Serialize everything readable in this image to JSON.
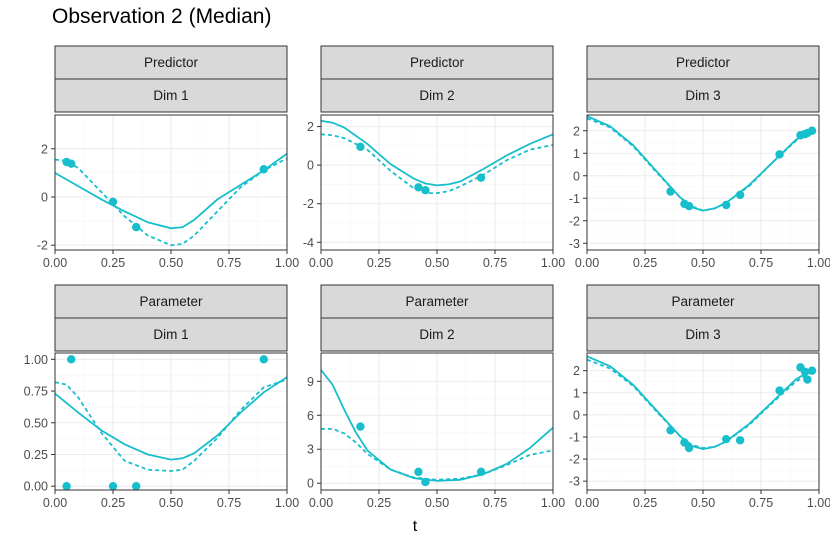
{
  "title": "Observation 2 (Median)",
  "xlabel": "t",
  "colors": {
    "series": "#17becb",
    "strip": "#d9d9d9",
    "grid": "#ebebeb",
    "border": "#333333"
  },
  "chart_data": [
    {
      "type": "line",
      "strip_top": "Predictor",
      "strip_bottom": "Dim 1",
      "xlim": [
        0,
        1
      ],
      "ylim": [
        -2.2,
        3.4
      ],
      "xticks": [
        0,
        0.25,
        0.5,
        0.75,
        1
      ],
      "xtick_labels": [
        "0.00",
        "0.25",
        "0.50",
        "0.75",
        "1.00"
      ],
      "yticks": [
        -2,
        0,
        2
      ],
      "ytick_labels": [
        "-2",
        "0",
        "2"
      ],
      "series": [
        {
          "name": "solid",
          "x": [
            0,
            0.1,
            0.2,
            0.3,
            0.4,
            0.5,
            0.55,
            0.6,
            0.7,
            0.8,
            0.9,
            1.0
          ],
          "y": [
            1.0,
            0.45,
            -0.1,
            -0.6,
            -1.05,
            -1.3,
            -1.25,
            -0.95,
            -0.1,
            0.5,
            1.1,
            1.8
          ]
        },
        {
          "name": "dashed",
          "x": [
            0,
            0.05,
            0.1,
            0.2,
            0.3,
            0.4,
            0.5,
            0.55,
            0.6,
            0.7,
            0.8,
            0.9,
            1.0
          ],
          "y": [
            1.55,
            1.5,
            1.2,
            0.2,
            -0.8,
            -1.6,
            -2.0,
            -1.95,
            -1.6,
            -0.6,
            0.4,
            1.1,
            1.6
          ]
        }
      ],
      "points": {
        "x": [
          0.05,
          0.07,
          0.25,
          0.35,
          0.9
        ],
        "y": [
          1.45,
          1.38,
          -0.2,
          -1.25,
          1.15
        ]
      }
    },
    {
      "type": "line",
      "strip_top": "Predictor",
      "strip_bottom": "Dim 2",
      "xlim": [
        0,
        1
      ],
      "ylim": [
        -4.4,
        2.6
      ],
      "xticks": [
        0,
        0.25,
        0.5,
        0.75,
        1
      ],
      "xtick_labels": [
        "0.00",
        "0.25",
        "0.50",
        "0.75",
        "1.00"
      ],
      "yticks": [
        -4,
        -2,
        0,
        2
      ],
      "ytick_labels": [
        "-4",
        "-2",
        "0",
        "2"
      ],
      "series": [
        {
          "name": "solid",
          "x": [
            0,
            0.05,
            0.1,
            0.2,
            0.3,
            0.4,
            0.45,
            0.5,
            0.55,
            0.6,
            0.7,
            0.8,
            0.9,
            1.0
          ],
          "y": [
            2.3,
            2.2,
            1.95,
            1.1,
            0.05,
            -0.7,
            -0.95,
            -1.05,
            -1.0,
            -0.85,
            -0.2,
            0.5,
            1.1,
            1.6
          ]
        },
        {
          "name": "dashed",
          "x": [
            0,
            0.05,
            0.1,
            0.2,
            0.3,
            0.4,
            0.45,
            0.5,
            0.55,
            0.6,
            0.7,
            0.8,
            0.9,
            1.0
          ],
          "y": [
            1.6,
            1.55,
            1.4,
            0.8,
            -0.3,
            -1.2,
            -1.45,
            -1.45,
            -1.35,
            -1.1,
            -0.5,
            0.25,
            0.8,
            1.05
          ]
        }
      ],
      "points": {
        "x": [
          0.17,
          0.42,
          0.45,
          0.69
        ],
        "y": [
          0.95,
          -1.15,
          -1.3,
          -0.65
        ]
      }
    },
    {
      "type": "line",
      "strip_top": "Predictor",
      "strip_bottom": "Dim 3",
      "xlim": [
        0,
        1
      ],
      "ylim": [
        -3.3,
        2.7
      ],
      "xticks": [
        0,
        0.25,
        0.5,
        0.75,
        1
      ],
      "xtick_labels": [
        "0.00",
        "0.25",
        "0.50",
        "0.75",
        "1.00"
      ],
      "yticks": [
        -3,
        -2,
        -1,
        0,
        1,
        2
      ],
      "ytick_labels": [
        "-3",
        "-2",
        "-1",
        "0",
        "1",
        "2"
      ],
      "series": [
        {
          "name": "solid",
          "x": [
            0,
            0.1,
            0.2,
            0.3,
            0.4,
            0.45,
            0.5,
            0.55,
            0.6,
            0.7,
            0.8,
            0.9,
            0.97
          ],
          "y": [
            2.65,
            2.2,
            1.35,
            0.2,
            -0.95,
            -1.4,
            -1.55,
            -1.45,
            -1.2,
            -0.4,
            0.6,
            1.6,
            2.0
          ]
        },
        {
          "name": "dashed",
          "x": [
            0,
            0.1,
            0.2,
            0.3,
            0.4,
            0.45,
            0.5,
            0.55,
            0.6,
            0.7,
            0.8,
            0.9,
            0.97
          ],
          "y": [
            2.55,
            2.15,
            1.3,
            0.15,
            -0.95,
            -1.35,
            -1.55,
            -1.45,
            -1.2,
            -0.45,
            0.6,
            1.55,
            1.95
          ]
        }
      ],
      "points": {
        "x": [
          0.36,
          0.42,
          0.44,
          0.6,
          0.66,
          0.83,
          0.92,
          0.94,
          0.95,
          0.97
        ],
        "y": [
          -0.7,
          -1.25,
          -1.35,
          -1.3,
          -0.85,
          0.95,
          1.8,
          1.85,
          1.9,
          2.0
        ]
      }
    },
    {
      "type": "line",
      "strip_top": "Parameter",
      "strip_bottom": "Dim 1",
      "xlim": [
        0,
        1
      ],
      "ylim": [
        -0.03,
        1.05
      ],
      "xticks": [
        0,
        0.25,
        0.5,
        0.75,
        1
      ],
      "xtick_labels": [
        "0.00",
        "0.25",
        "0.50",
        "0.75",
        "1.00"
      ],
      "yticks": [
        0,
        0.25,
        0.5,
        0.75,
        1
      ],
      "ytick_labels": [
        "0.00",
        "0.25",
        "0.50",
        "0.75",
        "1.00"
      ],
      "series": [
        {
          "name": "solid",
          "x": [
            0,
            0.1,
            0.2,
            0.3,
            0.4,
            0.5,
            0.55,
            0.6,
            0.7,
            0.8,
            0.9,
            1.0
          ],
          "y": [
            0.73,
            0.58,
            0.44,
            0.33,
            0.25,
            0.21,
            0.22,
            0.26,
            0.4,
            0.58,
            0.74,
            0.86
          ]
        },
        {
          "name": "dashed",
          "x": [
            0,
            0.05,
            0.1,
            0.2,
            0.3,
            0.4,
            0.5,
            0.55,
            0.6,
            0.7,
            0.8,
            0.9,
            1.0
          ],
          "y": [
            0.82,
            0.8,
            0.7,
            0.42,
            0.2,
            0.13,
            0.12,
            0.13,
            0.2,
            0.38,
            0.6,
            0.78,
            0.84
          ]
        }
      ],
      "points": {
        "x": [
          0.05,
          0.07,
          0.25,
          0.35,
          0.9
        ],
        "y": [
          0.0,
          1.0,
          0.0,
          0.0,
          1.0
        ]
      }
    },
    {
      "type": "line",
      "strip_top": "Parameter",
      "strip_bottom": "Dim 2",
      "xlim": [
        0,
        1
      ],
      "ylim": [
        -0.6,
        11.5
      ],
      "xticks": [
        0,
        0.25,
        0.5,
        0.75,
        1
      ],
      "xtick_labels": [
        "0.00",
        "0.25",
        "0.50",
        "0.75",
        "1.00"
      ],
      "yticks": [
        0,
        3,
        6,
        9
      ],
      "ytick_labels": [
        "0",
        "3",
        "6",
        "9"
      ],
      "series": [
        {
          "name": "solid",
          "x": [
            0,
            0.05,
            0.1,
            0.15,
            0.2,
            0.3,
            0.4,
            0.5,
            0.6,
            0.7,
            0.8,
            0.9,
            1.0
          ],
          "y": [
            10.0,
            8.7,
            6.5,
            4.5,
            2.9,
            1.2,
            0.45,
            0.2,
            0.3,
            0.8,
            1.7,
            3.1,
            4.9
          ]
        },
        {
          "name": "dashed",
          "x": [
            0,
            0.05,
            0.1,
            0.15,
            0.2,
            0.3,
            0.4,
            0.5,
            0.6,
            0.7,
            0.8,
            0.9,
            1.0
          ],
          "y": [
            4.8,
            4.8,
            4.4,
            3.6,
            2.6,
            1.2,
            0.5,
            0.3,
            0.4,
            0.8,
            1.6,
            2.5,
            2.9
          ]
        }
      ],
      "points": {
        "x": [
          0.17,
          0.42,
          0.45,
          0.69
        ],
        "y": [
          5.0,
          1.0,
          0.1,
          1.0
        ]
      }
    },
    {
      "type": "line",
      "strip_top": "Parameter",
      "strip_bottom": "Dim 3",
      "xlim": [
        0,
        1
      ],
      "ylim": [
        -3.4,
        2.8
      ],
      "xticks": [
        0,
        0.25,
        0.5,
        0.75,
        1
      ],
      "xtick_labels": [
        "0.00",
        "0.25",
        "0.50",
        "0.75",
        "1.00"
      ],
      "yticks": [
        -3,
        -2,
        -1,
        0,
        1,
        2
      ],
      "ytick_labels": [
        "-3",
        "-2",
        "-1",
        "0",
        "1",
        "2"
      ],
      "series": [
        {
          "name": "solid",
          "x": [
            0,
            0.1,
            0.2,
            0.3,
            0.4,
            0.45,
            0.5,
            0.55,
            0.6,
            0.7,
            0.8,
            0.9,
            0.97
          ],
          "y": [
            2.65,
            2.2,
            1.35,
            0.2,
            -0.95,
            -1.4,
            -1.55,
            -1.45,
            -1.2,
            -0.4,
            0.6,
            1.6,
            2.05
          ]
        },
        {
          "name": "dashed",
          "x": [
            0,
            0.1,
            0.2,
            0.3,
            0.4,
            0.45,
            0.5,
            0.55,
            0.6,
            0.7,
            0.8,
            0.9,
            0.97
          ],
          "y": [
            2.5,
            2.1,
            1.3,
            0.15,
            -0.95,
            -1.35,
            -1.5,
            -1.45,
            -1.2,
            -0.45,
            0.55,
            1.5,
            1.95
          ]
        }
      ],
      "points": {
        "x": [
          0.36,
          0.42,
          0.44,
          0.6,
          0.66,
          0.83,
          0.92,
          0.94,
          0.95,
          0.97
        ],
        "y": [
          -0.7,
          -1.25,
          -1.5,
          -1.1,
          -1.15,
          1.1,
          2.15,
          1.95,
          1.6,
          2.0
        ]
      }
    }
  ]
}
